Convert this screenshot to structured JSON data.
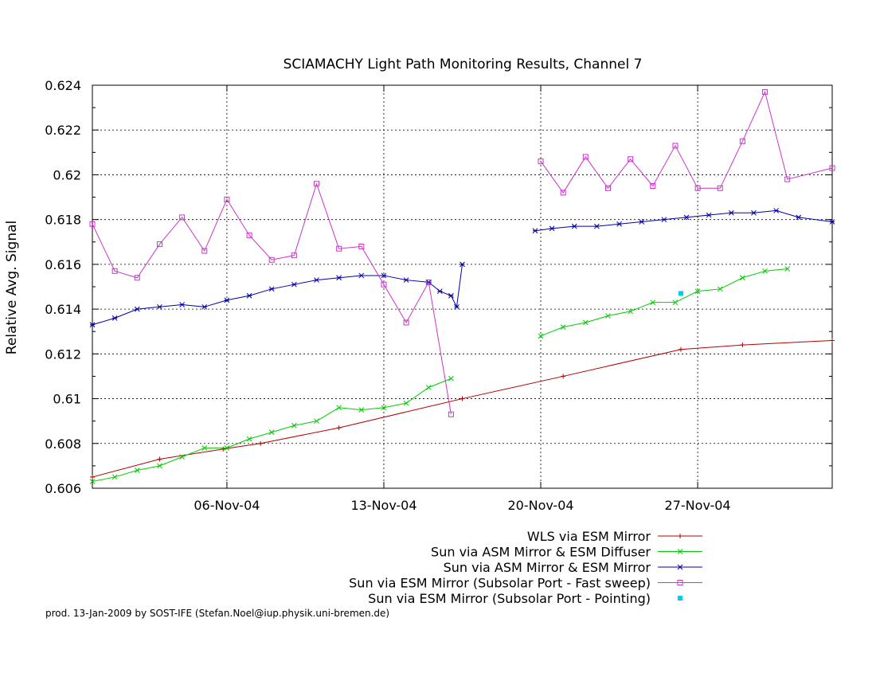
{
  "chart_data": {
    "type": "line",
    "title": "SCIAMACHY Light Path Monitoring Results, Channel 7",
    "xlabel": "",
    "ylabel": "Relative Avg. Signal",
    "xlim": [
      "2004-10-31T00:00",
      "2004-12-03T00:00"
    ],
    "ylim": [
      0.606,
      0.624
    ],
    "yticks": [
      0.606,
      0.608,
      0.61,
      0.612,
      0.614,
      0.616,
      0.618,
      0.62,
      0.622,
      0.624
    ],
    "ytick_labels": [
      "0.606",
      "0.608",
      "0.61",
      "0.612",
      "0.614",
      "0.616",
      "0.618",
      "0.62",
      "0.622",
      "0.624"
    ],
    "xticks": [
      "2004-11-06",
      "2004-11-13",
      "2004-11-20",
      "2004-11-27"
    ],
    "xtick_labels": [
      "06-Nov-04",
      "13-Nov-04",
      "20-Nov-04",
      "27-Nov-04"
    ],
    "grid": true,
    "legend_position": "bottom-right, below plot",
    "series": [
      {
        "name": "WLS via ESM Mirror",
        "color": "#b30000",
        "marker": "plus",
        "points": [
          [
            "2004-10-31T00:00",
            0.6065
          ],
          [
            "2004-11-03T00:00",
            0.6073
          ],
          [
            "2004-11-05T20:00",
            0.60775
          ],
          [
            "2004-11-07T12:00",
            0.608
          ],
          [
            "2004-11-11T00:00",
            0.6087
          ],
          [
            "2004-11-16T12:00",
            0.61
          ],
          [
            "2004-11-21T00:00",
            0.611
          ],
          [
            "2004-11-26T06:00",
            0.6122
          ],
          [
            "2004-11-29T00:00",
            0.6124
          ],
          [
            "2004-12-03T00:00",
            0.6126
          ]
        ]
      },
      {
        "name": "Sun via ASM Mirror & ESM Diffuser",
        "color": "#00cc00",
        "marker": "x",
        "points": [
          [
            "2004-10-31T00:00",
            0.6063
          ],
          [
            "2004-11-01T00:00",
            0.6065
          ],
          [
            "2004-11-02T00:00",
            0.6068
          ],
          [
            "2004-11-03T00:00",
            0.607
          ],
          [
            "2004-11-04T00:00",
            0.6074
          ],
          [
            "2004-11-05T00:00",
            0.6078
          ],
          [
            "2004-11-06T00:00",
            0.6078
          ],
          [
            "2004-11-07T00:00",
            0.6082
          ],
          [
            "2004-11-08T00:00",
            0.6085
          ],
          [
            "2004-11-09T00:00",
            0.6088
          ],
          [
            "2004-11-10T00:00",
            0.609
          ],
          [
            "2004-11-11T00:00",
            0.6096
          ],
          [
            "2004-11-12T00:00",
            0.6095
          ],
          [
            "2004-11-13T00:00",
            0.6096
          ],
          [
            "2004-11-14T00:00",
            0.6098
          ],
          [
            "2004-11-15T00:00",
            0.6105
          ],
          [
            "2004-11-16T00:00",
            0.6109
          ]
        ],
        "points_2": [
          [
            "2004-11-20T00:00",
            0.6128
          ],
          [
            "2004-11-21T00:00",
            0.6132
          ],
          [
            "2004-11-22T00:00",
            0.6134
          ],
          [
            "2004-11-23T00:00",
            0.6137
          ],
          [
            "2004-11-24T00:00",
            0.6139
          ],
          [
            "2004-11-25T00:00",
            0.6143
          ],
          [
            "2004-11-26T00:00",
            0.6143
          ],
          [
            "2004-11-27T00:00",
            0.6148
          ],
          [
            "2004-11-28T00:00",
            0.6149
          ],
          [
            "2004-11-29T00:00",
            0.6154
          ],
          [
            "2004-11-30T00:00",
            0.6157
          ],
          [
            "2004-12-01T00:00",
            0.6158
          ]
        ]
      },
      {
        "name": "Sun via ASM Mirror & ESM Mirror",
        "color": "#0000aa",
        "marker": "star",
        "points": [
          [
            "2004-10-31T00:00",
            0.6133
          ],
          [
            "2004-11-01T00:00",
            0.6136
          ],
          [
            "2004-11-02T00:00",
            0.614
          ],
          [
            "2004-11-03T00:00",
            0.6141
          ],
          [
            "2004-11-04T00:00",
            0.6142
          ],
          [
            "2004-11-05T00:00",
            0.6141
          ],
          [
            "2004-11-06T00:00",
            0.6144
          ],
          [
            "2004-11-07T00:00",
            0.6146
          ],
          [
            "2004-11-08T00:00",
            0.6149
          ],
          [
            "2004-11-09T00:00",
            0.6151
          ],
          [
            "2004-11-10T00:00",
            0.6153
          ],
          [
            "2004-11-11T00:00",
            0.6154
          ],
          [
            "2004-11-12T00:00",
            0.6155
          ],
          [
            "2004-11-13T00:00",
            0.6155
          ],
          [
            "2004-11-14T00:00",
            0.6153
          ],
          [
            "2004-11-15T00:00",
            0.6152
          ],
          [
            "2004-11-15T12:00",
            0.6148
          ],
          [
            "2004-11-16T00:00",
            0.6146
          ],
          [
            "2004-11-16T06:00",
            0.6141
          ],
          [
            "2004-11-16T12:00",
            0.616
          ]
        ],
        "points_2": [
          [
            "2004-11-19T18:00",
            0.6175
          ],
          [
            "2004-11-20T12:00",
            0.6176
          ],
          [
            "2004-11-21T12:00",
            0.6177
          ],
          [
            "2004-11-22T12:00",
            0.6177
          ],
          [
            "2004-11-23T12:00",
            0.6178
          ],
          [
            "2004-11-24T12:00",
            0.6179
          ],
          [
            "2004-11-25T12:00",
            0.618
          ],
          [
            "2004-11-26T12:00",
            0.6181
          ],
          [
            "2004-11-27T12:00",
            0.6182
          ],
          [
            "2004-11-28T12:00",
            0.6183
          ],
          [
            "2004-11-29T12:00",
            0.6183
          ],
          [
            "2004-11-30T12:00",
            0.6184
          ],
          [
            "2004-12-01T12:00",
            0.6181
          ],
          [
            "2004-12-03T00:00",
            0.6179
          ]
        ]
      },
      {
        "name": "Sun via ESM Mirror (Subsolar Port - Fast sweep)",
        "color": "#cc33cc",
        "marker": "square",
        "points": [
          [
            "2004-10-31T00:00",
            0.6178
          ],
          [
            "2004-11-01T00:00",
            0.6157
          ],
          [
            "2004-11-02T00:00",
            0.6154
          ],
          [
            "2004-11-03T00:00",
            0.6169
          ],
          [
            "2004-11-04T00:00",
            0.6181
          ],
          [
            "2004-11-05T00:00",
            0.6166
          ],
          [
            "2004-11-06T00:00",
            0.6189
          ],
          [
            "2004-11-07T00:00",
            0.6173
          ],
          [
            "2004-11-08T00:00",
            0.6162
          ],
          [
            "2004-11-09T00:00",
            0.6164
          ],
          [
            "2004-11-10T00:00",
            0.6196
          ],
          [
            "2004-11-11T00:00",
            0.6167
          ],
          [
            "2004-11-12T00:00",
            0.6168
          ],
          [
            "2004-11-13T00:00",
            0.6151
          ],
          [
            "2004-11-14T00:00",
            0.6134
          ],
          [
            "2004-11-15T00:00",
            0.6152
          ],
          [
            "2004-11-16T00:00",
            0.6093
          ]
        ],
        "points_2": [
          [
            "2004-11-20T00:00",
            0.6206
          ],
          [
            "2004-11-21T00:00",
            0.6192
          ],
          [
            "2004-11-22T00:00",
            0.6208
          ],
          [
            "2004-11-23T00:00",
            0.6194
          ],
          [
            "2004-11-24T00:00",
            0.6207
          ],
          [
            "2004-11-25T00:00",
            0.6195
          ],
          [
            "2004-11-26T00:00",
            0.6213
          ],
          [
            "2004-11-27T00:00",
            0.6194
          ],
          [
            "2004-11-28T00:00",
            0.6194
          ],
          [
            "2004-11-29T00:00",
            0.6215
          ],
          [
            "2004-11-30T00:00",
            0.6237
          ],
          [
            "2004-12-01T00:00",
            0.6198
          ],
          [
            "2004-12-03T00:00",
            0.6203
          ]
        ]
      },
      {
        "name": "Sun via ESM Mirror (Subsolar Port - Pointing)",
        "color": "#00ccee",
        "marker": "dot",
        "points": [
          [
            "2004-11-26T06:00",
            0.6147
          ]
        ]
      }
    ],
    "footer": "prod. 13-Jan-2009 by SOST-IFE (Stefan.Noel@iup.physik.uni-bremen.de)"
  }
}
